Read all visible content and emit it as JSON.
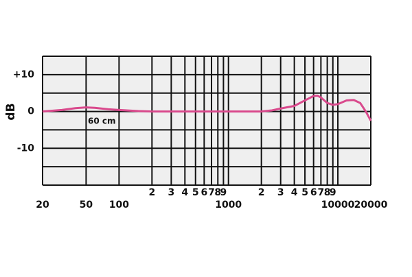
{
  "chart_data": {
    "type": "line",
    "y_label": "dB",
    "annotation": "60 cm",
    "xscale": "log",
    "xlim": [
      20,
      20000
    ],
    "ylim": [
      -20,
      15
    ],
    "xticks": [
      20,
      50,
      100,
      {
        "value": 200,
        "label": "2"
      },
      {
        "value": 300,
        "label": "3"
      },
      {
        "value": 400,
        "label": "4"
      },
      {
        "value": 500,
        "label": "5"
      },
      {
        "value": 600,
        "label": "6"
      },
      {
        "value": 700,
        "label": "7"
      },
      {
        "value": 800,
        "label": "8"
      },
      {
        "value": 900,
        "label": "9"
      },
      1000,
      {
        "value": 2000,
        "label": "2"
      },
      {
        "value": 3000,
        "label": "3"
      },
      {
        "value": 4000,
        "label": "4"
      },
      {
        "value": 5000,
        "label": "5"
      },
      {
        "value": 6000,
        "label": "6"
      },
      {
        "value": 7000,
        "label": "7"
      },
      {
        "value": 8000,
        "label": "8"
      },
      {
        "value": 9000,
        "label": "9"
      },
      10000,
      20000
    ],
    "yticks": [
      {
        "value": 10,
        "label": "+10"
      },
      0,
      -10
    ],
    "yminor": [
      -20,
      -15,
      -5,
      5,
      15
    ],
    "grid": true,
    "x": [
      20,
      30,
      40,
      50,
      60,
      80,
      100,
      150,
      200,
      500,
      1000,
      2000,
      2500,
      3000,
      4000,
      5000,
      6000,
      6500,
      7000,
      8000,
      9000,
      10000,
      12000,
      14000,
      16000,
      18000,
      20000
    ],
    "series": [
      {
        "name": "60 cm",
        "color": "#d9498c",
        "values": [
          0,
          0.4,
          0.9,
          1.1,
          1.0,
          0.6,
          0.4,
          0.1,
          0,
          0,
          0,
          0,
          0.3,
          0.8,
          1.5,
          3,
          4.2,
          4.3,
          3.8,
          2.3,
          1.8,
          2.0,
          3.0,
          3.1,
          2.3,
          0,
          -2.5
        ]
      }
    ]
  }
}
